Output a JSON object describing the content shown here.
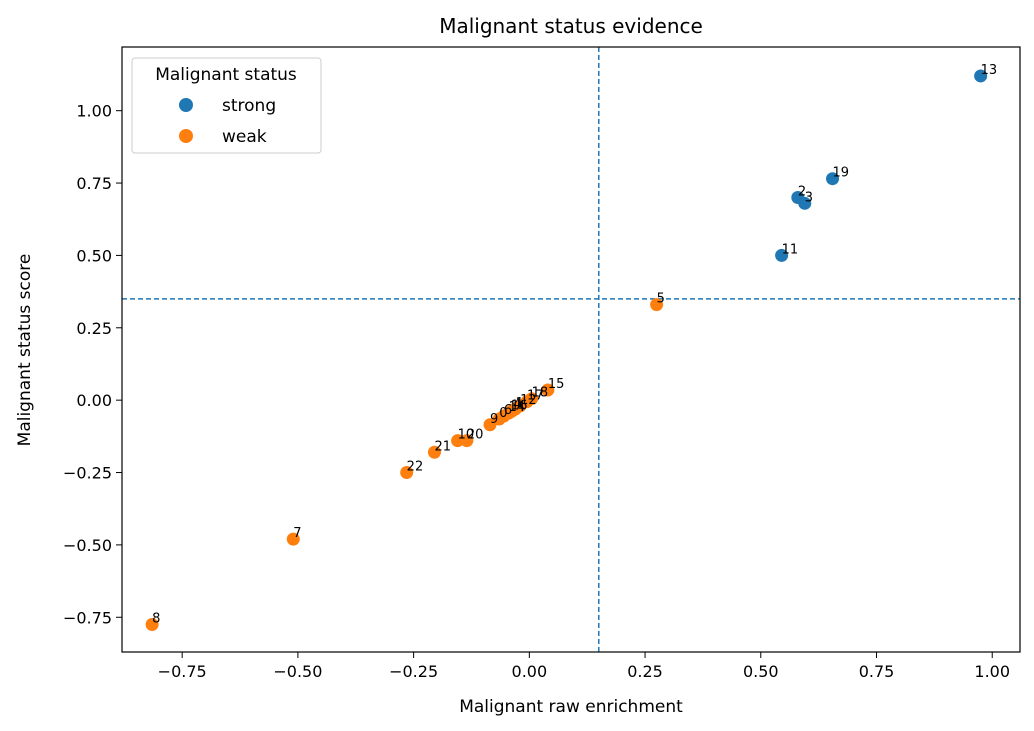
{
  "chart_data": {
    "type": "scatter",
    "title": "Malignant status evidence",
    "xlabel": "Malignant raw enrichment",
    "ylabel": "Malignant status score",
    "xlim": [
      -0.88,
      1.06
    ],
    "ylim": [
      -0.87,
      1.22
    ],
    "xticks": [
      -0.75,
      -0.5,
      -0.25,
      0.0,
      0.25,
      0.5,
      0.75,
      1.0
    ],
    "xtick_labels": [
      "−0.75",
      "−0.50",
      "−0.25",
      "0.00",
      "0.25",
      "0.50",
      "0.75",
      "1.00"
    ],
    "yticks": [
      -0.75,
      -0.5,
      -0.25,
      0.0,
      0.25,
      0.5,
      0.75,
      1.0
    ],
    "ytick_labels": [
      "−0.75",
      "−0.50",
      "−0.25",
      "0.00",
      "0.25",
      "0.50",
      "0.75",
      "1.00"
    ],
    "grid": false,
    "reference_lines": {
      "vertical_x": 0.15,
      "horizontal_y": 0.35,
      "style": "dashed",
      "color": "#1f77b4"
    },
    "legend": {
      "title": "Malignant status",
      "placement": "top-left"
    },
    "series": [
      {
        "name": "strong",
        "color": "#1f77b4",
        "points": [
          {
            "label": "13",
            "x": 0.975,
            "y": 1.12
          },
          {
            "label": "19",
            "x": 0.655,
            "y": 0.765
          },
          {
            "label": "2",
            "x": 0.58,
            "y": 0.7
          },
          {
            "label": "3",
            "x": 0.595,
            "y": 0.68
          },
          {
            "label": "11",
            "x": 0.545,
            "y": 0.5
          }
        ]
      },
      {
        "name": "weak",
        "color": "#ff7f0e",
        "points": [
          {
            "label": "5",
            "x": 0.275,
            "y": 0.33
          },
          {
            "label": "15",
            "x": 0.04,
            "y": 0.035
          },
          {
            "label": "18",
            "x": 0.005,
            "y": 0.005
          },
          {
            "label": "17",
            "x": -0.005,
            "y": -0.005
          },
          {
            "label": "12",
            "x": -0.02,
            "y": -0.02
          },
          {
            "label": "1",
            "x": -0.03,
            "y": -0.03
          },
          {
            "label": "4",
            "x": -0.035,
            "y": -0.035
          },
          {
            "label": "16",
            "x": -0.04,
            "y": -0.04
          },
          {
            "label": "14",
            "x": -0.045,
            "y": -0.045
          },
          {
            "label": "6",
            "x": -0.055,
            "y": -0.055
          },
          {
            "label": "0",
            "x": -0.065,
            "y": -0.065
          },
          {
            "label": "9",
            "x": -0.085,
            "y": -0.085
          },
          {
            "label": "20",
            "x": -0.135,
            "y": -0.14
          },
          {
            "label": "10",
            "x": -0.155,
            "y": -0.14
          },
          {
            "label": "21",
            "x": -0.205,
            "y": -0.18
          },
          {
            "label": "22",
            "x": -0.265,
            "y": -0.25
          },
          {
            "label": "7",
            "x": -0.51,
            "y": -0.48
          },
          {
            "label": "8",
            "x": -0.815,
            "y": -0.775
          }
        ]
      }
    ]
  }
}
